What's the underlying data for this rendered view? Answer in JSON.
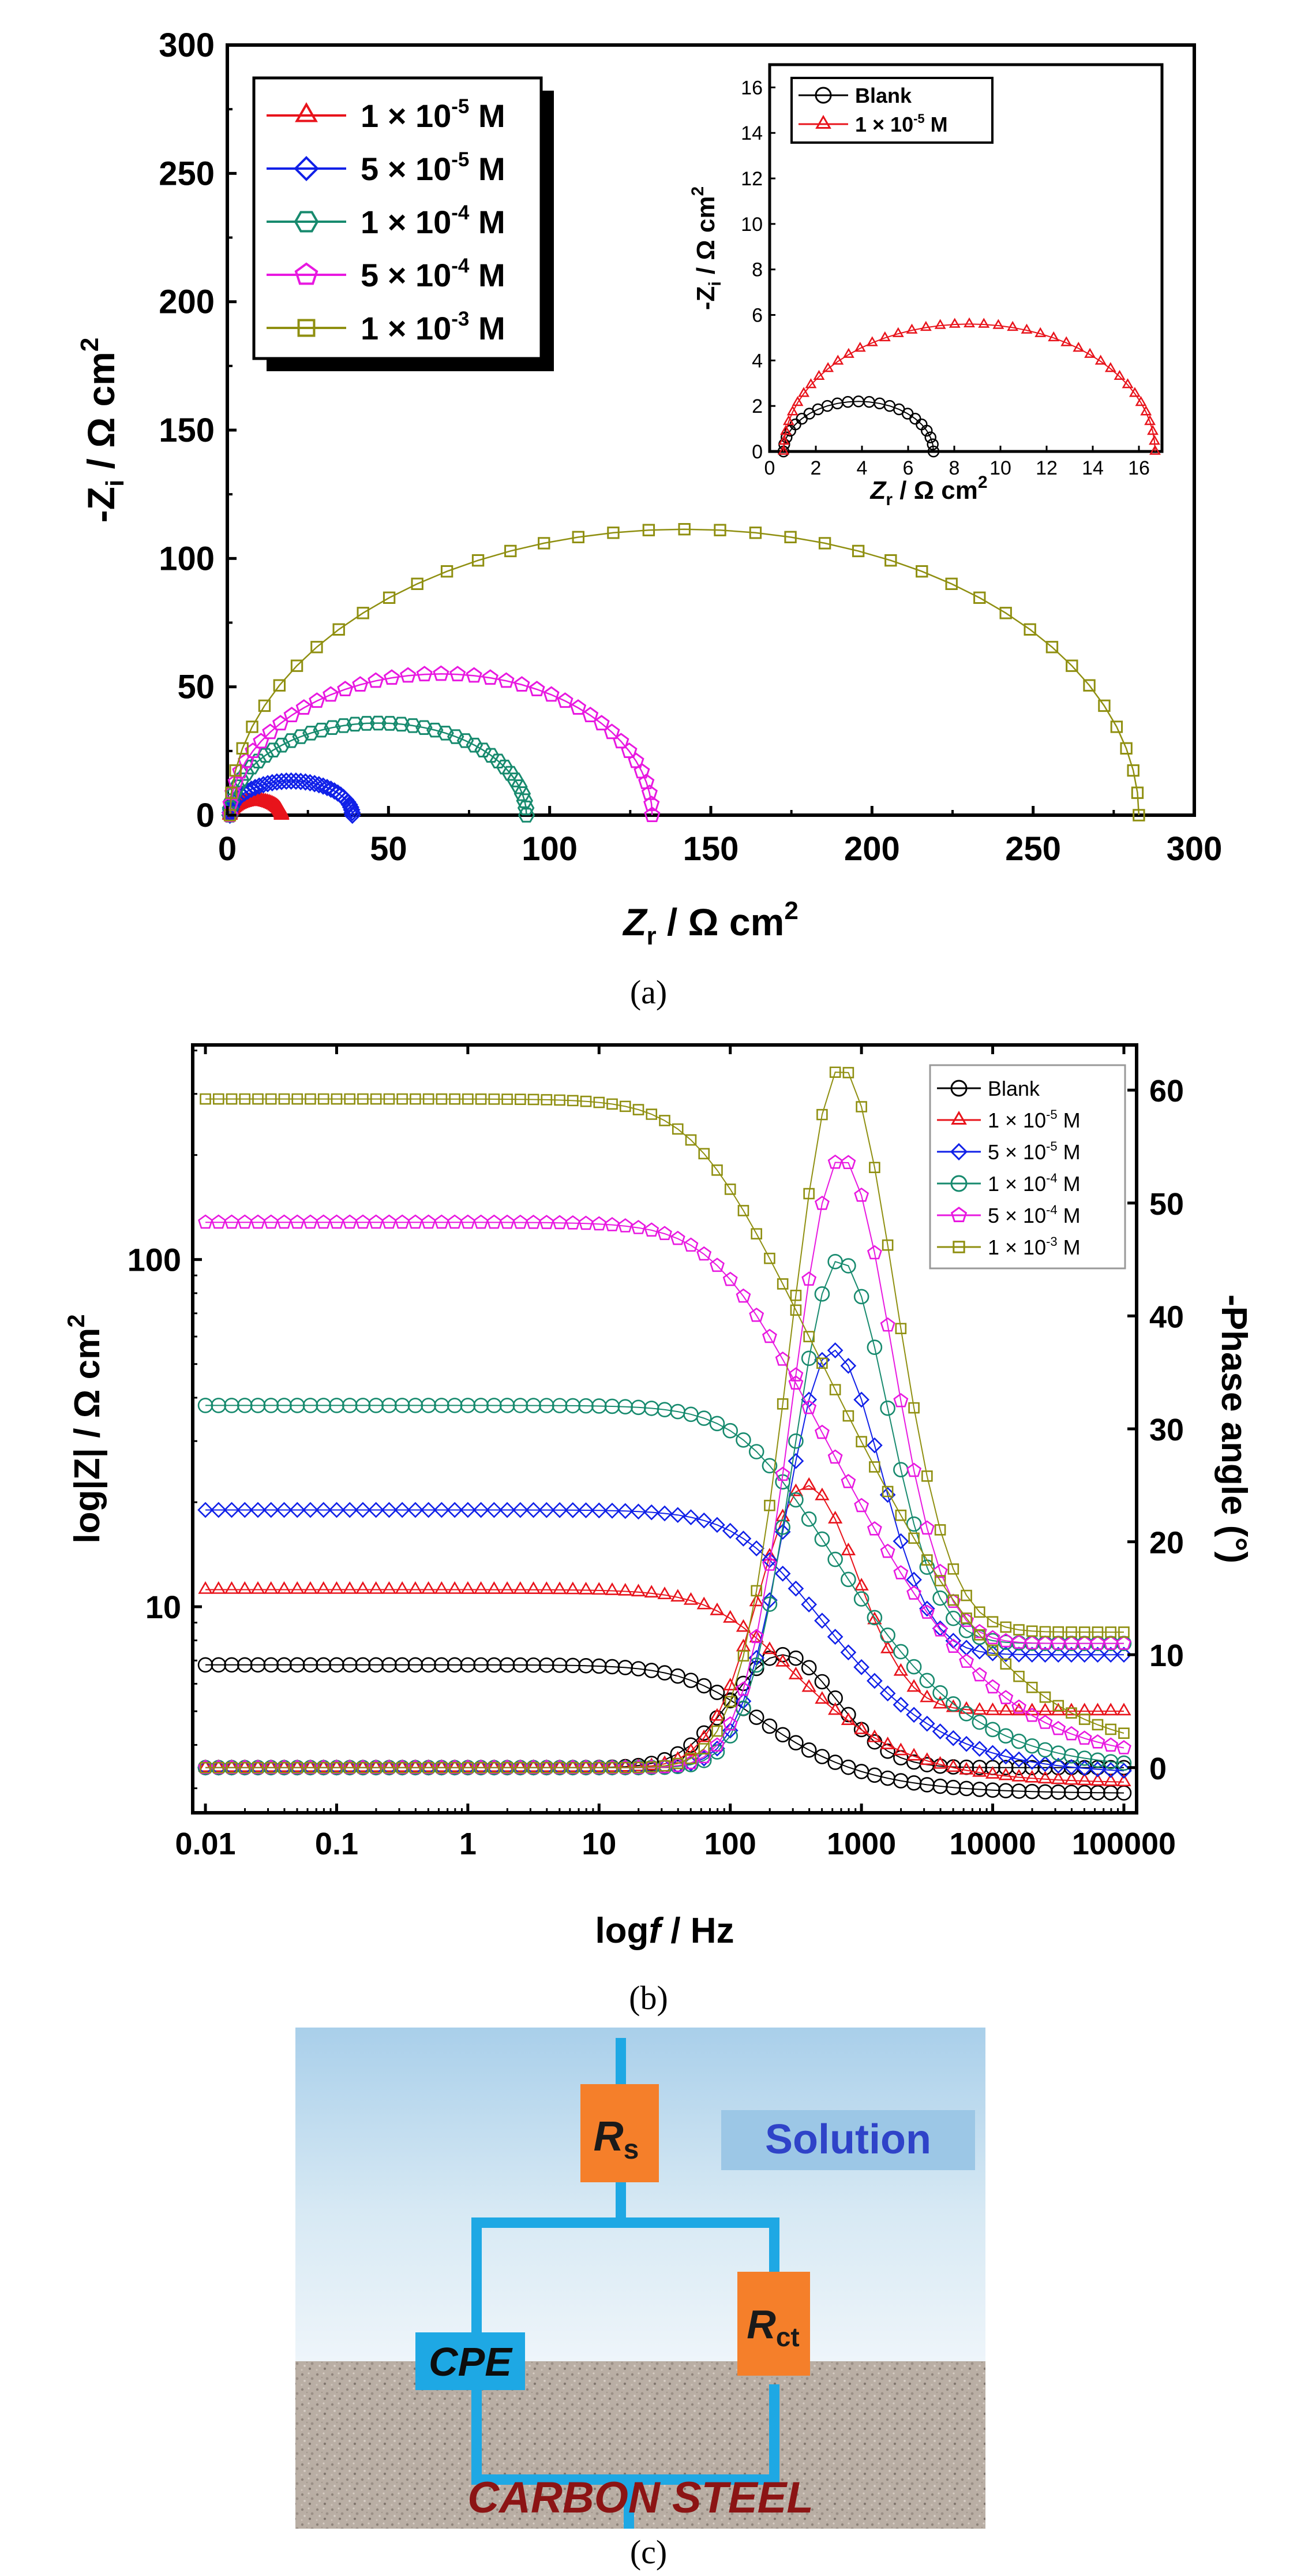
{
  "chart_data": [
    {
      "id": "a",
      "type": "scatter",
      "caption": "(a)",
      "xlabel_main": "Z",
      "xlabel_sub": "r",
      "xlabel_rest": " / Ω cm",
      "xlabel_sup": "2",
      "ylabel_main": "-Z",
      "ylabel_sub": "i",
      "ylabel_rest": " / Ω cm",
      "ylabel_sup": "2",
      "xlim": [
        0,
        300
      ],
      "ylim": [
        0,
        300
      ],
      "xticks": [
        "0",
        "50",
        "100",
        "150",
        "200",
        "250",
        "300"
      ],
      "yticks": [
        "0",
        "50",
        "100",
        "150",
        "200",
        "250",
        "300"
      ],
      "series": [
        {
          "name": "1 × 10",
          "exp": "-5",
          "unit": " M",
          "color": "#e8131b",
          "marker": "triangle",
          "rs": 0.8,
          "rct": 16,
          "depress": 0.7,
          "n": 40
        },
        {
          "name": "5 × 10",
          "exp": "-5",
          "unit": " M",
          "color": "#1020e8",
          "marker": "diamond",
          "rs": 0.8,
          "rct": 38,
          "depress": 0.7,
          "n": 40
        },
        {
          "name": "1 × 10",
          "exp": "-4",
          "unit": " M",
          "color": "#178a6e",
          "marker": "hexagon",
          "rs": 0.8,
          "rct": 92,
          "depress": 0.78,
          "n": 40
        },
        {
          "name": "5 × 10",
          "exp": "-4",
          "unit": " M",
          "color": "#e818e0",
          "marker": "pentagon",
          "rs": 0.8,
          "rct": 131,
          "depress": 0.84,
          "n": 40
        },
        {
          "name": "1 × 10",
          "exp": "-3",
          "unit": " M",
          "color": "#8f8f10",
          "marker": "square",
          "rs": 0.8,
          "rct": 282,
          "depress": 0.79,
          "n": 40
        }
      ],
      "inset": {
        "xlabel_main": "Z",
        "xlabel_sub": "r",
        "xlabel_rest": " / Ω cm",
        "xlabel_sup": "2",
        "ylabel_main": "-Z",
        "ylabel_sub": "i",
        "ylabel_rest": " / Ω cm",
        "ylabel_sup": "2",
        "xlim": [
          0,
          17
        ],
        "ylim": [
          0,
          17
        ],
        "xticks": [
          "0",
          "2",
          "4",
          "6",
          "8",
          "10",
          "12",
          "14",
          "16"
        ],
        "yticks": [
          "0",
          "2",
          "4",
          "6",
          "8",
          "10",
          "12",
          "14",
          "16"
        ],
        "series": [
          {
            "name": "Blank",
            "color": "#000000",
            "marker": "circle",
            "rs": 0.6,
            "rct": 6.5,
            "peak": 2.2,
            "n": 22
          },
          {
            "name": "1 × 10",
            "exp": "-5",
            "unit": " M",
            "color": "#e8131b",
            "marker": "triangle",
            "rs": 0.6,
            "rct": 16.1,
            "peak": 5.6,
            "n": 40
          }
        ]
      }
    },
    {
      "id": "b",
      "type": "scatter",
      "caption": "(b)",
      "xlabel_main": "log",
      "xlabel_italic": "f",
      "xlabel_rest": " / Hz",
      "ylabel_left": "log|Z| / Ω cm",
      "ylabel_left_sup": "2",
      "ylabel_right": "-Phase angle (°)",
      "xscale": "log",
      "xlim": [
        0.008,
        125000
      ],
      "yleft_scale": "log",
      "yleft_lim": [
        2.55,
        415
      ],
      "yleft_ticks": [
        "10",
        "100"
      ],
      "yright_lim": [
        -4,
        64
      ],
      "yright_ticks": [
        "0",
        "10",
        "20",
        "30",
        "40",
        "50",
        "60"
      ],
      "xticks": [
        "0.01",
        "0.1",
        "1",
        "10",
        "100",
        "1000",
        "10000",
        "100000"
      ],
      "series": [
        {
          "name": "Blank",
          "color": "#000000",
          "marker": "circle",
          "z_low": 6.8,
          "z_high": 2.9,
          "f_t": 80,
          "ph_max": 10,
          "f_peak": 250,
          "ph_high": 0,
          "ph_width": 0.55
        },
        {
          "name": "1 × 10",
          "exp": "-5",
          "unit": " M",
          "color": "#e8131b",
          "marker": "triangle",
          "z_low": 11.2,
          "z_high": 3.1,
          "f_t": 120,
          "ph_max": 25,
          "f_peak": 380,
          "ph_high": 5,
          "ph_width": 0.52
        },
        {
          "name": "5 × 10",
          "exp": "-5",
          "unit": " M",
          "color": "#1020e8",
          "marker": "diamond",
          "z_low": 19,
          "z_high": 3.3,
          "f_t": 170,
          "ph_max": 37,
          "f_peak": 600,
          "ph_high": 10,
          "ph_width": 0.5
        },
        {
          "name": "1 × 10",
          "exp": "-4",
          "unit": " M",
          "color": "#178a6e",
          "marker": "circle",
          "z_low": 38,
          "z_high": 3.4,
          "f_t": 160,
          "ph_max": 45,
          "f_peak": 680,
          "ph_high": 11,
          "ph_width": 0.5
        },
        {
          "name": "5 × 10",
          "exp": "-4",
          "unit": " M",
          "color": "#e818e0",
          "marker": "pentagon",
          "z_low": 128,
          "z_high": 3.6,
          "f_t": 90,
          "ph_max": 54,
          "f_peak": 700,
          "ph_high": 11,
          "ph_width": 0.52
        },
        {
          "name": "1 × 10",
          "exp": "-3",
          "unit": " M",
          "color": "#8f8f10",
          "marker": "square",
          "z_low": 290,
          "z_high": 3.8,
          "f_t": 60,
          "ph_max": 62,
          "f_peak": 700,
          "ph_high": 12,
          "ph_width": 0.55
        }
      ]
    }
  ],
  "circuit": {
    "caption": "(c)",
    "solution_label": "Solution",
    "substrate_label": "CARBON STEEL",
    "rs_label": "R",
    "rs_sub": "s",
    "rct_label": "R",
    "rct_sub": "ct",
    "cpe_label": "CPE",
    "colors": {
      "wire": "#1ea8e4",
      "resistor": "#f57f2a",
      "cpe": "#1ea8e4",
      "substrate_text": "#8c1414",
      "solution_text": "#2f43c8"
    }
  }
}
